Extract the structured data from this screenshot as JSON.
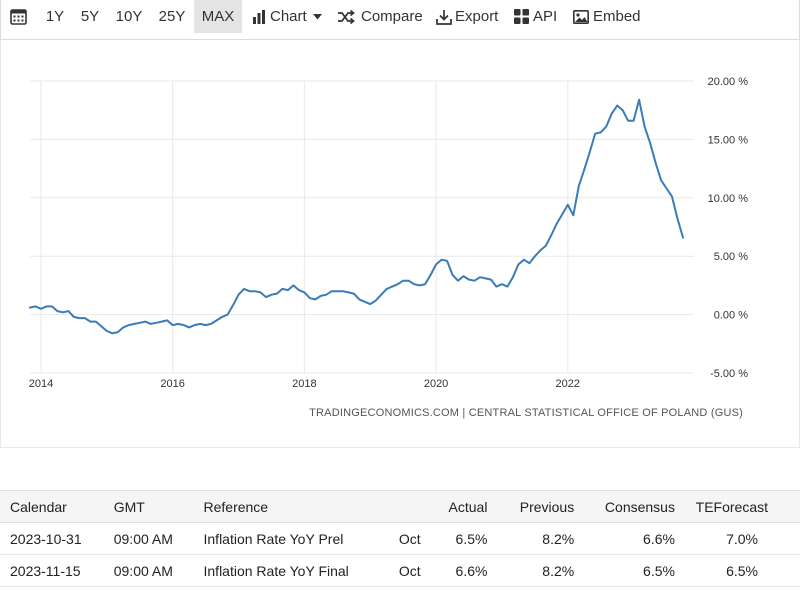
{
  "toolbar": {
    "ranges": [
      "1Y",
      "5Y",
      "10Y",
      "25Y",
      "MAX"
    ],
    "active_range": "MAX",
    "chart_label": "Chart",
    "compare_label": "Compare",
    "export_label": "Export",
    "api_label": "API",
    "embed_label": "Embed",
    "icons": [
      "calendar-icon",
      "bar-chart-icon",
      "caret-down-icon",
      "shuffle-icon",
      "download-icon",
      "grid-icon",
      "image-icon"
    ]
  },
  "credit": "TRADINGECONOMICS.COM | CENTRAL STATISTICAL OFFICE OF POLAND (GUS)",
  "chart_data": {
    "type": "line",
    "title": "",
    "xlabel": "",
    "ylabel": "",
    "x_ticks": [
      "2014",
      "2016",
      "2018",
      "2020",
      "2022"
    ],
    "y_ticks": [
      "20.00 %",
      "15.00 %",
      "10.00 %",
      "5.00 %",
      "0.00 %",
      "-5.00 %"
    ],
    "ylim": [
      -5,
      20
    ],
    "xlim": [
      "2013-11",
      "2023-12"
    ],
    "y_axis_position": "right",
    "grid": true,
    "line_color": "#3a7cb8",
    "x": [
      "2013-11",
      "2013-12",
      "2014-01",
      "2014-02",
      "2014-03",
      "2014-04",
      "2014-05",
      "2014-06",
      "2014-07",
      "2014-08",
      "2014-09",
      "2014-10",
      "2014-11",
      "2014-12",
      "2015-01",
      "2015-02",
      "2015-03",
      "2015-04",
      "2015-05",
      "2015-06",
      "2015-07",
      "2015-08",
      "2015-09",
      "2015-10",
      "2015-11",
      "2015-12",
      "2016-01",
      "2016-02",
      "2016-03",
      "2016-04",
      "2016-05",
      "2016-06",
      "2016-07",
      "2016-08",
      "2016-09",
      "2016-10",
      "2016-11",
      "2016-12",
      "2017-01",
      "2017-02",
      "2017-03",
      "2017-04",
      "2017-05",
      "2017-06",
      "2017-07",
      "2017-08",
      "2017-09",
      "2017-10",
      "2017-11",
      "2017-12",
      "2018-01",
      "2018-02",
      "2018-03",
      "2018-04",
      "2018-05",
      "2018-06",
      "2018-07",
      "2018-08",
      "2018-09",
      "2018-10",
      "2018-11",
      "2018-12",
      "2019-01",
      "2019-02",
      "2019-03",
      "2019-04",
      "2019-05",
      "2019-06",
      "2019-07",
      "2019-08",
      "2019-09",
      "2019-10",
      "2019-11",
      "2019-12",
      "2020-01",
      "2020-02",
      "2020-03",
      "2020-04",
      "2020-05",
      "2020-06",
      "2020-07",
      "2020-08",
      "2020-09",
      "2020-10",
      "2020-11",
      "2020-12",
      "2021-01",
      "2021-02",
      "2021-03",
      "2021-04",
      "2021-05",
      "2021-06",
      "2021-07",
      "2021-08",
      "2021-09",
      "2021-10",
      "2021-11",
      "2021-12",
      "2022-01",
      "2022-02",
      "2022-03",
      "2022-04",
      "2022-05",
      "2022-06",
      "2022-07",
      "2022-08",
      "2022-09",
      "2022-10",
      "2022-11",
      "2022-12",
      "2023-01",
      "2023-02",
      "2023-03",
      "2023-04",
      "2023-05",
      "2023-06",
      "2023-07",
      "2023-08",
      "2023-09",
      "2023-10"
    ],
    "values": [
      0.6,
      0.7,
      0.5,
      0.7,
      0.7,
      0.3,
      0.2,
      0.3,
      -0.2,
      -0.3,
      -0.3,
      -0.6,
      -0.6,
      -1.0,
      -1.4,
      -1.6,
      -1.5,
      -1.1,
      -0.9,
      -0.8,
      -0.7,
      -0.6,
      -0.8,
      -0.7,
      -0.6,
      -0.5,
      -0.9,
      -0.8,
      -0.9,
      -1.1,
      -0.9,
      -0.8,
      -0.9,
      -0.8,
      -0.5,
      -0.2,
      0.0,
      0.8,
      1.7,
      2.2,
      2.0,
      2.0,
      1.9,
      1.5,
      1.7,
      1.8,
      2.2,
      2.1,
      2.5,
      2.1,
      1.9,
      1.4,
      1.3,
      1.6,
      1.7,
      2.0,
      2.0,
      2.0,
      1.9,
      1.8,
      1.3,
      1.1,
      0.9,
      1.2,
      1.7,
      2.2,
      2.4,
      2.6,
      2.9,
      2.9,
      2.6,
      2.5,
      2.6,
      3.4,
      4.3,
      4.7,
      4.6,
      3.4,
      2.9,
      3.3,
      3.0,
      2.9,
      3.2,
      3.1,
      3.0,
      2.4,
      2.6,
      2.4,
      3.2,
      4.3,
      4.7,
      4.4,
      5.0,
      5.5,
      5.9,
      6.8,
      7.8,
      8.6,
      9.4,
      8.5,
      11.0,
      12.4,
      13.9,
      15.5,
      15.6,
      16.1,
      17.2,
      17.9,
      17.5,
      16.6,
      16.6,
      18.4,
      16.1,
      14.7,
      13.0,
      11.5,
      10.8,
      10.1,
      8.2,
      6.6
    ]
  },
  "table": {
    "headers": [
      "Calendar",
      "GMT",
      "Reference",
      "",
      "Actual",
      "Previous",
      "Consensus",
      "TEForecast"
    ],
    "rows": [
      [
        "2023-10-31",
        "09:00 AM",
        "Inflation Rate YoY Prel",
        "Oct",
        "6.5%",
        "8.2%",
        "6.6%",
        "7.0%"
      ],
      [
        "2023-11-15",
        "09:00 AM",
        "Inflation Rate YoY Final",
        "Oct",
        "6.6%",
        "8.2%",
        "6.5%",
        "6.5%"
      ]
    ]
  }
}
